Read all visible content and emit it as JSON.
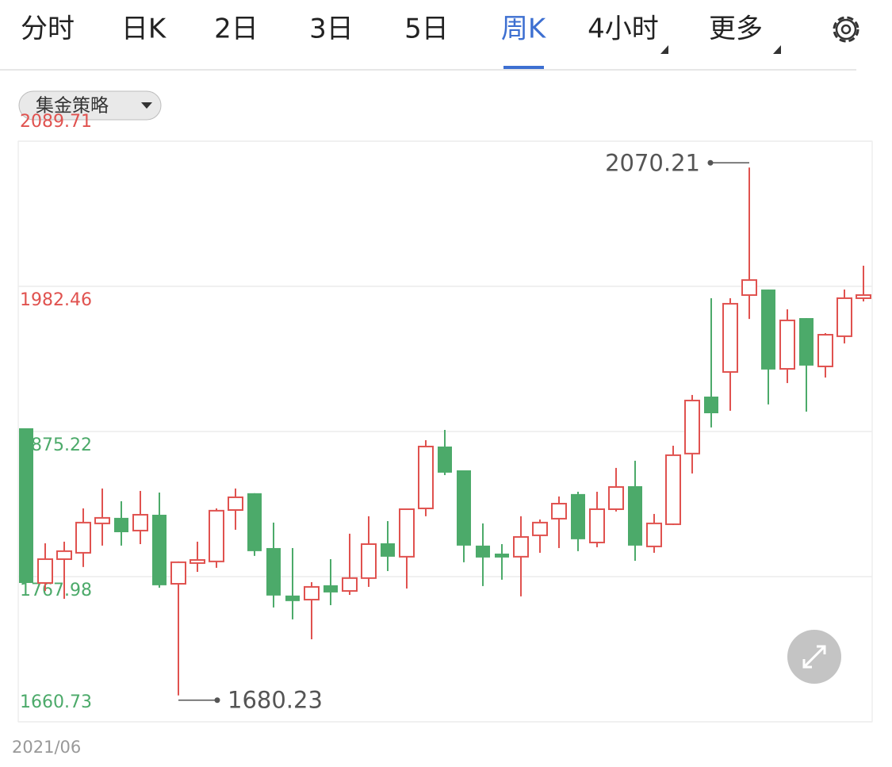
{
  "tabs": [
    "分时",
    "日K",
    "2日",
    "3日",
    "5日",
    "周K",
    "4小时",
    "更多"
  ],
  "active_tab": 5,
  "dropdown_tabs": [
    6,
    7
  ],
  "strategy": "集金策略",
  "chart_data": {
    "type": "candlestick",
    "up_color": "#e0524f",
    "down_color": "#4caa6a",
    "categories": [
      "2021/06",
      null,
      null,
      null,
      null,
      null,
      null,
      null,
      null,
      null,
      null,
      null,
      null,
      null,
      null,
      null,
      null,
      null,
      null,
      null,
      null,
      null,
      null,
      null,
      null,
      null,
      null,
      null,
      null,
      null,
      null,
      null,
      null,
      null,
      null,
      null,
      null,
      null,
      null,
      null,
      null,
      null,
      null,
      null,
      null
    ],
    "open": [
      1877.6,
      1763.3,
      1780.9,
      1785.6,
      1807.3,
      1811.4,
      1802.0,
      1813.7,
      1762.7,
      1778.0,
      1779.2,
      1817.2,
      1829.6,
      1789.1,
      1754.0,
      1751.0,
      1761.6,
      1757.4,
      1766.9,
      1792.6,
      1782.7,
      1818.4,
      1864.1,
      1846.5,
      1790.9,
      1785.0,
      1782.7,
      1798.5,
      1810.8,
      1829.0,
      1793.2,
      1817.8,
      1834.8,
      1790.3,
      1806.7,
      1858.9,
      1901.0,
      1919.2,
      1976.0,
      1980.1,
      1921.5,
      1959.0,
      1923.3,
      1945.6,
      1973.7
    ],
    "high": [
      1877.6,
      1792.6,
      1793.8,
      1818.4,
      1833.1,
      1823.7,
      1831.3,
      1830.1,
      1779.2,
      1793.8,
      1818.4,
      1833.1,
      1829.6,
      1807.9,
      1789.1,
      1763.9,
      1780.9,
      1799.7,
      1812.6,
      1809.0,
      1817.8,
      1868.8,
      1876.4,
      1846.5,
      1807.3,
      1792.0,
      1812.6,
      1810.2,
      1827.2,
      1830.7,
      1830.7,
      1848.3,
      1853.6,
      1814.3,
      1864.7,
      1902.2,
      1973.7,
      1973.7,
      2070.21,
      1980.1,
      1965.5,
      1959.0,
      1947.9,
      1980.1,
      1997.7
    ],
    "low": [
      1763.3,
      1757.4,
      1751.6,
      1775.1,
      1790.9,
      1790.9,
      1792.0,
      1759.8,
      1680.23,
      1771.5,
      1774.5,
      1802.6,
      1783.3,
      1745.2,
      1736.4,
      1721.7,
      1746.9,
      1754.5,
      1760.4,
      1772.1,
      1759.2,
      1812.6,
      1843.0,
      1778.6,
      1761.0,
      1765.7,
      1753.4,
      1785.6,
      1789.1,
      1786.8,
      1789.7,
      1816.1,
      1779.7,
      1785.6,
      1806.1,
      1844.2,
      1878.2,
      1890.5,
      1958.4,
      1895.2,
      1911.0,
      1889.9,
      1915.1,
      1940.3,
      1971.3
    ],
    "close": [
      1763.3,
      1780.9,
      1786.8,
      1807.9,
      1811.4,
      1800.8,
      1813.7,
      1761.6,
      1778.6,
      1780.3,
      1816.7,
      1826.6,
      1786.8,
      1754.0,
      1749.9,
      1760.4,
      1756.3,
      1766.9,
      1792.0,
      1782.7,
      1817.8,
      1864.1,
      1844.8,
      1790.9,
      1782.1,
      1782.1,
      1797.3,
      1807.9,
      1821.9,
      1795.6,
      1817.8,
      1834.2,
      1790.9,
      1807.3,
      1857.7,
      1898.1,
      1888.7,
      1969.6,
      1987.1,
      1921.0,
      1957.3,
      1923.9,
      1946.7,
      1973.7,
      1976.0
    ],
    "annotations": [
      {
        "index": 38,
        "field": "high"
      },
      {
        "index": 8,
        "field": "low"
      }
    ],
    "ylim": [
      1660.73,
      2089.71
    ],
    "yticks": [
      1660.73,
      1767.98,
      1875.22,
      1982.46,
      2089.71
    ],
    "ytick_colors": [
      "#4caa6a",
      "#4caa6a",
      "#4caa6a",
      "#e0524f",
      "#e0524f"
    ],
    "grid": true
  }
}
